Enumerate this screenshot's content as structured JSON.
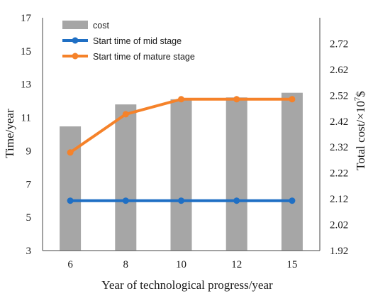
{
  "chart_data": {
    "type": "bar+line",
    "categories": [
      "6",
      "8",
      "10",
      "12",
      "15"
    ],
    "xlabel": "Year of technological progress/year",
    "ylabel_left": "Time/year",
    "ylabel_right_prefix": "Total cost/×10",
    "ylabel_right_exp": "7",
    "ylabel_right_suffix": "$",
    "left_axis": {
      "range": [
        3,
        17
      ],
      "ticks": [
        "3",
        "5",
        "7",
        "9",
        "11",
        "13",
        "15",
        "17"
      ]
    },
    "right_axis": {
      "range": [
        1.92,
        2.82
      ],
      "ticks": [
        "1.92",
        "2.02",
        "2.12",
        "2.22",
        "2.32",
        "2.42",
        "2.52",
        "2.62",
        "2.72"
      ]
    },
    "bars": {
      "name": "cost",
      "axis": "right",
      "color": "#a6a6a6",
      "values": [
        2.4,
        2.485,
        2.505,
        2.512,
        2.53
      ]
    },
    "series": [
      {
        "name": "Start time of mid stage",
        "axis": "left",
        "color": "#1f6fc4",
        "values": [
          6,
          6,
          6,
          6,
          6
        ]
      },
      {
        "name": "Start time of mature stage",
        "axis": "left",
        "color": "#f5822a",
        "values": [
          8.9,
          11.2,
          12.1,
          12.1,
          12.1
        ]
      }
    ],
    "legend": "top-left inside"
  }
}
